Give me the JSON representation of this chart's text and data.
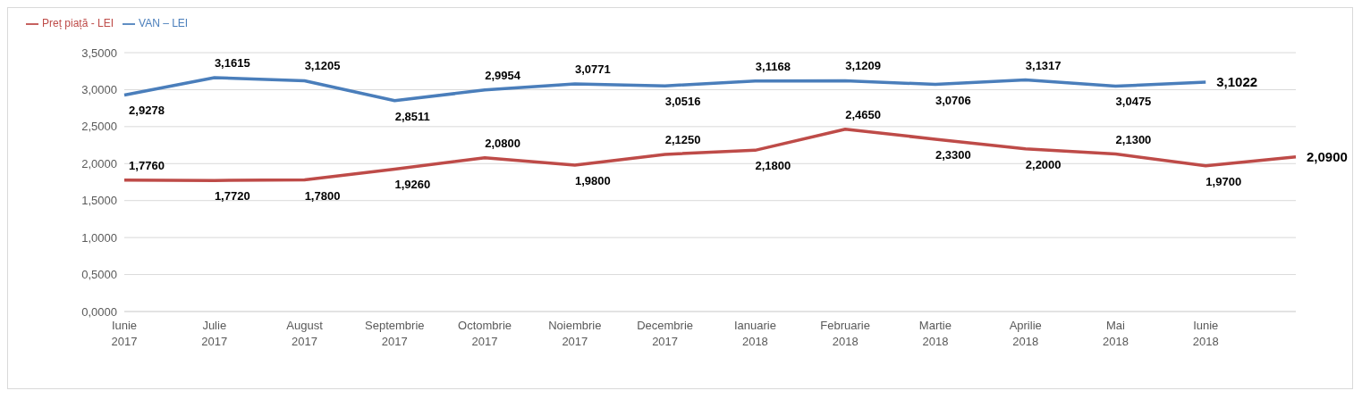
{
  "chart_data": {
    "type": "line",
    "categories": [
      "Iunie\n2017",
      "Julie\n2017",
      "August\n2017",
      "Septembrie\n2017",
      "Octombrie\n2017",
      "Noiembrie\n2017",
      "Decembrie\n2017",
      "Ianuarie\n2018",
      "Februarie\n2018",
      "Martie\n2018",
      "Aprilie\n2018",
      "Mai\n2018",
      "Iunie\n2018",
      null
    ],
    "series": [
      {
        "name": "VAN – LEI",
        "color": "#4a7ebb",
        "values": [
          2.9278,
          3.1615,
          3.1205,
          2.8511,
          2.9954,
          3.0771,
          3.0516,
          3.1168,
          3.1209,
          3.0706,
          3.1317,
          3.0475,
          3.1022,
          null
        ],
        "value_labels": [
          "2,9278",
          "3,1615",
          "3,1205",
          "2,8511",
          "2,9954",
          "3,0771",
          "3,0516",
          "3,1168",
          "3,1209",
          "3,0706",
          "3,1317",
          "3,0475",
          "3,1022",
          null
        ]
      },
      {
        "name": "Preț piață - LEI",
        "color": "#be4b48",
        "values": [
          1.776,
          1.772,
          1.78,
          1.926,
          2.08,
          1.98,
          2.125,
          2.18,
          2.465,
          2.33,
          2.2,
          2.13,
          1.97,
          2.09
        ],
        "value_labels": [
          "1,7760",
          "1,7720",
          "1,7800",
          "1,9260",
          "2,0800",
          "1,9800",
          "2,1250",
          "2,1800",
          "2,4650",
          "2,3300",
          "2,2000",
          "2,1300",
          "1,9700",
          "2,0900"
        ]
      }
    ],
    "ylim": [
      0,
      3.5
    ],
    "yticks": [
      {
        "value": 0,
        "label": "0,0000"
      },
      {
        "value": 0.5,
        "label": "0,5000"
      },
      {
        "value": 1,
        "label": "1,0000"
      },
      {
        "value": 1.5,
        "label": "1,5000"
      },
      {
        "value": 2,
        "label": "2,0000"
      },
      {
        "value": 2.5,
        "label": "2,5000"
      },
      {
        "value": 3,
        "label": "3,0000"
      },
      {
        "value": 3.5,
        "label": "3,5000"
      }
    ],
    "grid": "y",
    "legend": "top left",
    "marker": "none",
    "line_style": "solid"
  }
}
